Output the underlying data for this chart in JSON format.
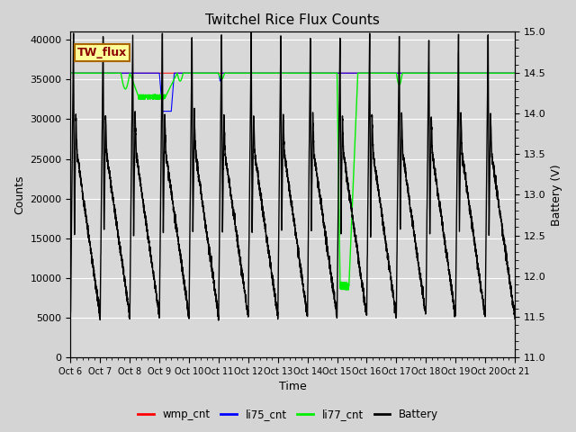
{
  "title": "Twitchel Rice Flux Counts",
  "xlabel": "Time",
  "ylabel_left": "Counts",
  "ylabel_right": "Battery (V)",
  "xlim": [
    0,
    15
  ],
  "ylim_left": [
    0,
    41000
  ],
  "ylim_right": [
    11.0,
    15.0
  ],
  "yticks_left": [
    0,
    5000,
    10000,
    15000,
    20000,
    25000,
    30000,
    35000,
    40000
  ],
  "yticks_right": [
    11.0,
    11.5,
    12.0,
    12.5,
    13.0,
    13.5,
    14.0,
    14.5,
    15.0
  ],
  "xtick_labels": [
    "Oct 6",
    "Oct 7",
    "Oct 8",
    "Oct 9",
    "Oct 10",
    "Oct 11",
    "Oct 12",
    "Oct 13",
    "Oct 14",
    "Oct 15",
    "Oct 16",
    "Oct 17",
    "Oct 18",
    "Oct 19",
    "Oct 20",
    "Oct 21"
  ],
  "bg_color": "#d8d8d8",
  "legend_label": "TW_flux",
  "legend_bg": "#ffff99",
  "legend_border": "#cc8800",
  "grid_color": "#ffffff",
  "battery_scale_min": 11.0,
  "battery_scale_max": 15.0,
  "counts_min": 0,
  "counts_max": 41000,
  "li77_flat": 35800,
  "wmp_flat": 35800,
  "figsize": [
    6.4,
    4.8
  ],
  "dpi": 100
}
